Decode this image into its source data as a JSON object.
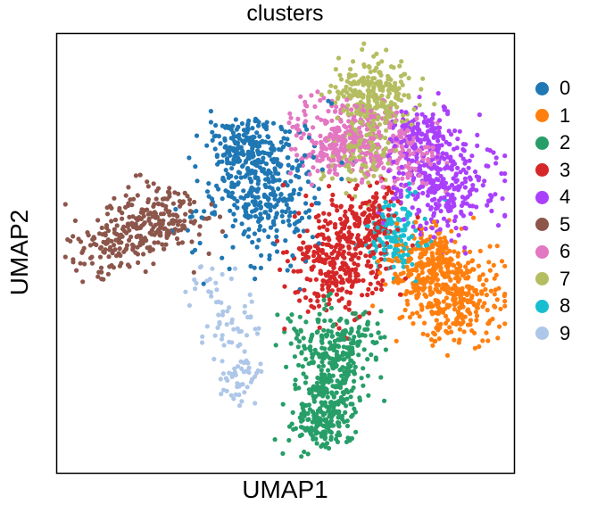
{
  "chart_data": {
    "type": "scatter",
    "title": "clusters",
    "xlabel": "UMAP1",
    "ylabel": "UMAP2",
    "xlim": [
      0,
      100
    ],
    "ylim": [
      0,
      100
    ],
    "ticks": "none",
    "grid": false,
    "legend": "right",
    "series": [
      {
        "name": "0",
        "color": "#1f77b4",
        "count": 520,
        "centers": [
          {
            "x": 45,
            "y": 64,
            "sx": 6.5,
            "sy": 7,
            "w": 0.7
          },
          {
            "x": 42,
            "y": 74,
            "sx": 4,
            "sy": 3,
            "w": 0.3
          }
        ]
      },
      {
        "name": "1",
        "color": "#ff7f0e",
        "count": 500,
        "centers": [
          {
            "x": 87,
            "y": 41,
            "sx": 5.5,
            "sy": 5.5,
            "w": 0.6
          },
          {
            "x": 82,
            "y": 48,
            "sx": 4,
            "sy": 4,
            "w": 0.4
          }
        ]
      },
      {
        "name": "2",
        "color": "#279e68",
        "count": 520,
        "centers": [
          {
            "x": 62,
            "y": 30,
            "sx": 5,
            "sy": 4,
            "w": 0.35
          },
          {
            "x": 60,
            "y": 20,
            "sx": 3.5,
            "sy": 4,
            "w": 0.35
          },
          {
            "x": 58,
            "y": 11,
            "sx": 3.5,
            "sy": 3,
            "w": 0.3
          }
        ]
      },
      {
        "name": "3",
        "color": "#d62728",
        "count": 440,
        "centers": [
          {
            "x": 62,
            "y": 48,
            "sx": 5.5,
            "sy": 6,
            "w": 0.7
          },
          {
            "x": 68,
            "y": 58,
            "sx": 4,
            "sy": 4,
            "w": 0.3
          }
        ]
      },
      {
        "name": "4",
        "color": "#aa40fc",
        "count": 430,
        "centers": [
          {
            "x": 85,
            "y": 66,
            "sx": 5.5,
            "sy": 6,
            "w": 0.7
          },
          {
            "x": 80,
            "y": 76,
            "sx": 3.5,
            "sy": 3.5,
            "w": 0.3
          }
        ]
      },
      {
        "name": "5",
        "color": "#8c564b",
        "count": 300,
        "centers": [
          {
            "x": 13,
            "y": 52,
            "sx": 5,
            "sy": 3.5,
            "w": 0.5
          },
          {
            "x": 23,
            "y": 58,
            "sx": 5,
            "sy": 3.5,
            "w": 0.5
          }
        ]
      },
      {
        "name": "6",
        "color": "#e377c2",
        "count": 440,
        "centers": [
          {
            "x": 64,
            "y": 76,
            "sx": 6.5,
            "sy": 4.5,
            "w": 0.7
          },
          {
            "x": 75,
            "y": 72,
            "sx": 5,
            "sy": 4,
            "w": 0.3
          }
        ]
      },
      {
        "name": "7",
        "color": "#b5bd61",
        "count": 380,
        "centers": [
          {
            "x": 69,
            "y": 85,
            "sx": 4.5,
            "sy": 4.5,
            "w": 0.7
          },
          {
            "x": 66,
            "y": 73,
            "sx": 3.5,
            "sy": 4,
            "w": 0.3
          }
        ]
      },
      {
        "name": "8",
        "color": "#17becf",
        "count": 140,
        "centers": [
          {
            "x": 74,
            "y": 54,
            "sx": 3,
            "sy": 4,
            "w": 1.0
          }
        ]
      },
      {
        "name": "9",
        "color": "#aec7e8",
        "count": 110,
        "centers": [
          {
            "x": 41,
            "y": 21,
            "sx": 2.5,
            "sy": 3,
            "w": 0.4
          },
          {
            "x": 38,
            "y": 33,
            "sx": 3,
            "sy": 4,
            "w": 0.4
          },
          {
            "x": 33,
            "y": 42,
            "sx": 3,
            "sy": 3,
            "w": 0.2
          }
        ]
      }
    ]
  }
}
